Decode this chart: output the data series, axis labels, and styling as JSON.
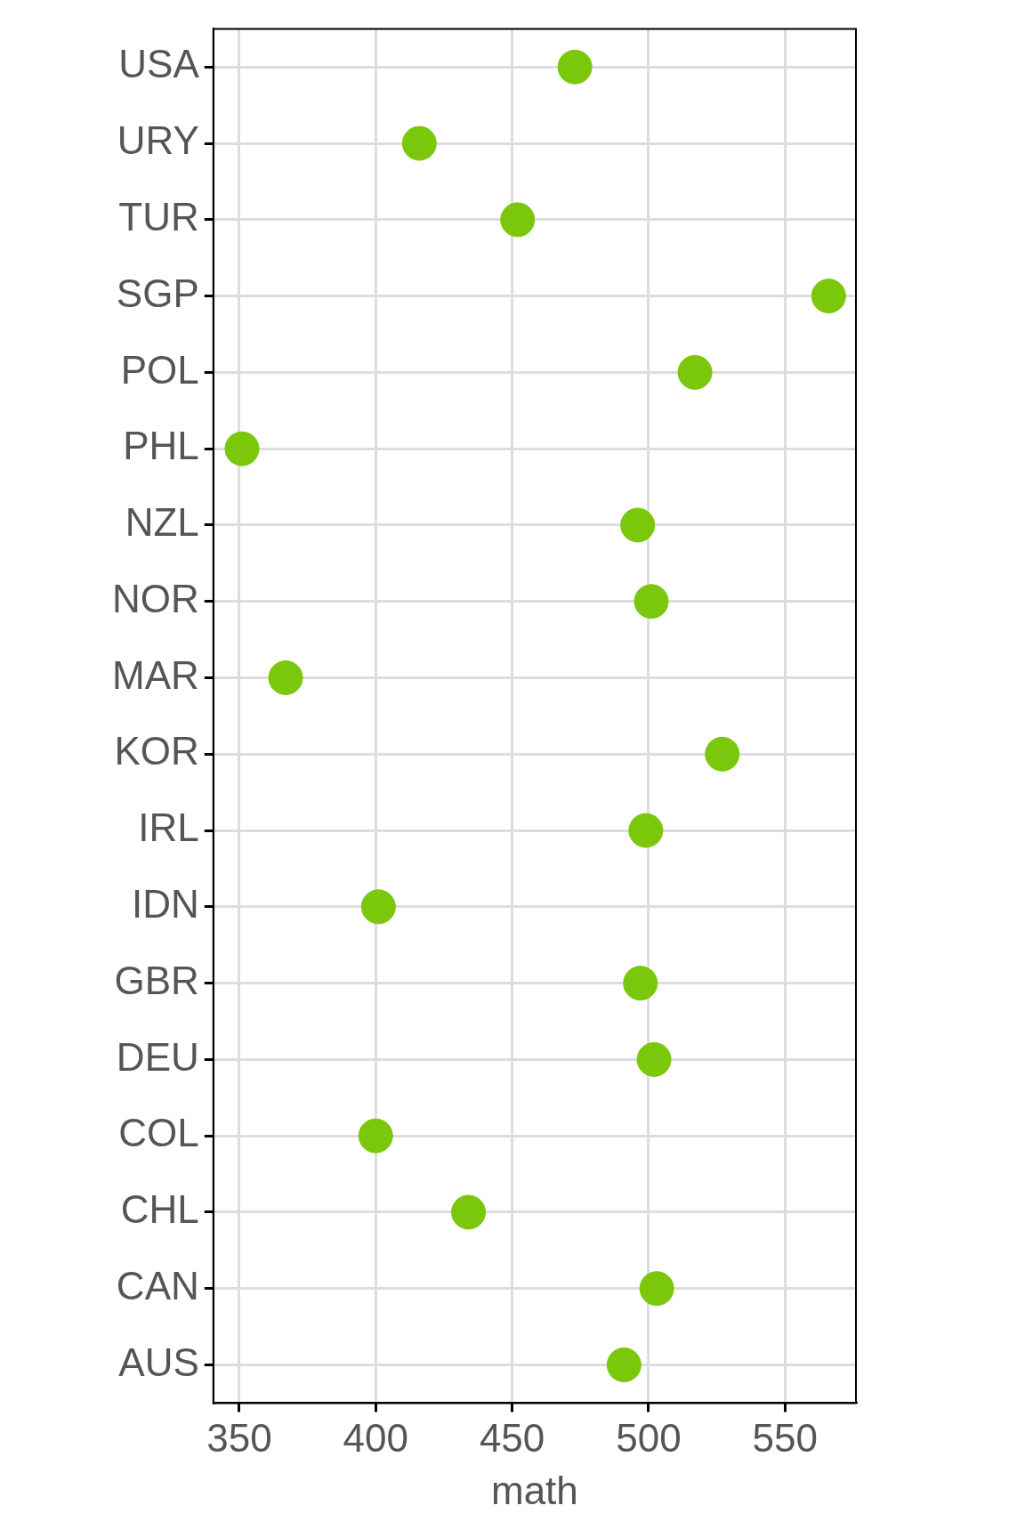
{
  "chart_data": {
    "type": "scatter",
    "orientation": "horizontal",
    "categories": [
      "USA",
      "URY",
      "TUR",
      "SGP",
      "POL",
      "PHL",
      "NZL",
      "NOR",
      "MAR",
      "KOR",
      "IRL",
      "IDN",
      "GBR",
      "DEU",
      "COL",
      "CHL",
      "CAN",
      "AUS"
    ],
    "values": [
      473,
      416,
      452,
      566,
      517,
      351,
      496,
      501,
      367,
      527,
      499,
      401,
      497,
      502,
      400,
      434,
      503,
      491
    ],
    "color": "#7ac70c",
    "marker": "circle",
    "xlabel": "math",
    "xlim": [
      340.5,
      576
    ],
    "xticks": [
      350,
      400,
      450,
      500,
      550
    ],
    "grid": true
  }
}
